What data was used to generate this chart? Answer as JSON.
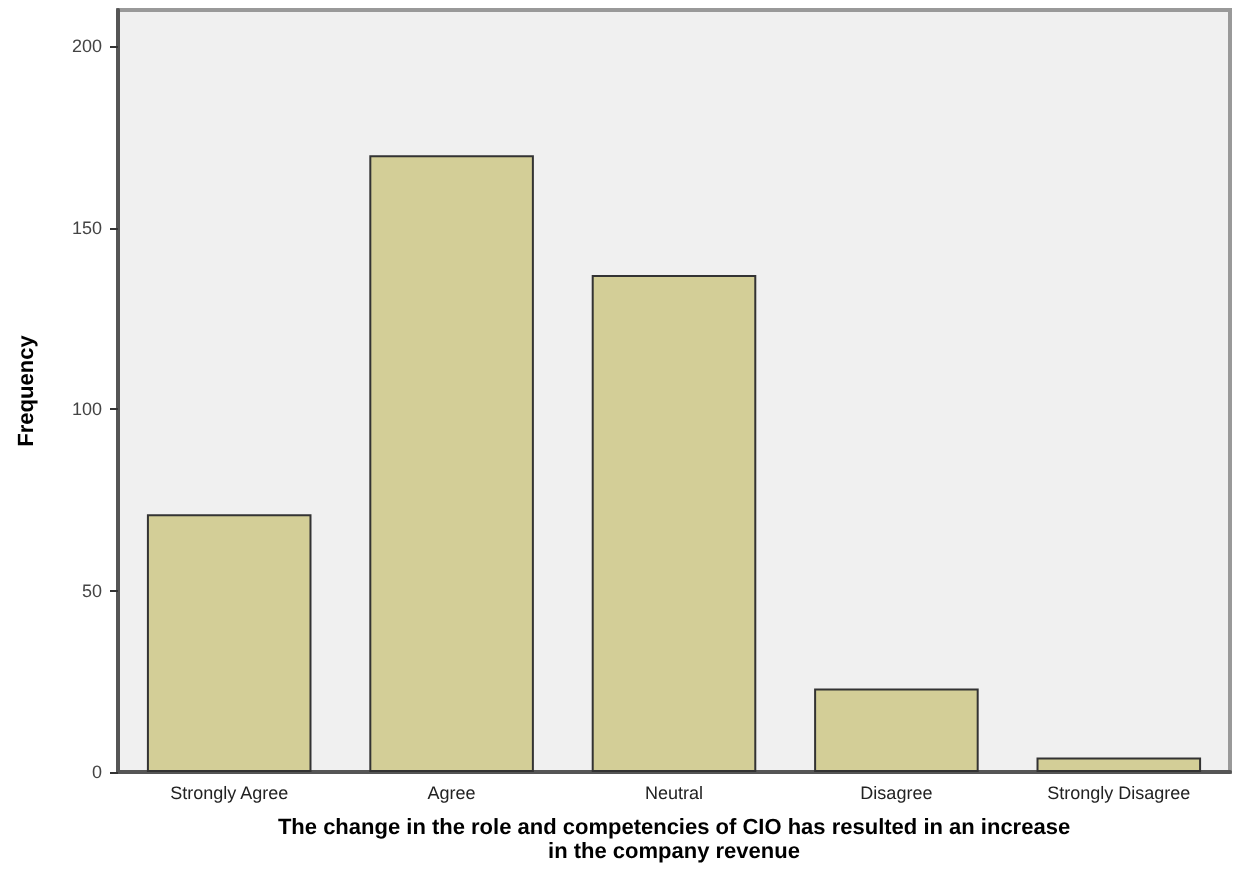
{
  "chart_data": {
    "type": "bar",
    "xlabel": "The change in the role and competencies of CIO has resulted in an increase\nin the company revenue",
    "ylabel": "Frequency",
    "categories": [
      "Strongly Agree",
      "Agree",
      "Neutral",
      "Disagree",
      "Strongly Disagree"
    ],
    "values": [
      71,
      170,
      137,
      23,
      4
    ],
    "color": "#d3ce97",
    "ylim": [
      0,
      210
    ],
    "yticks": [
      0,
      50,
      100,
      150,
      200
    ],
    "grid": false
  }
}
